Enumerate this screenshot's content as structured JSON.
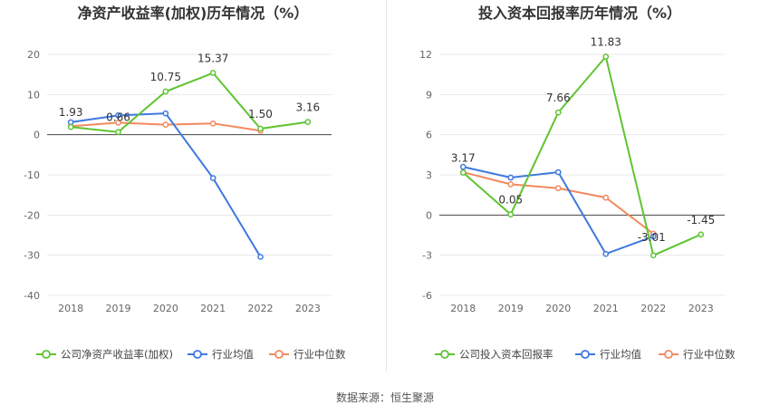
{
  "source_text": "数据来源：恒生聚源",
  "colors": {
    "company": "#5fc431",
    "avg": "#3e78e0",
    "median": "#f28a5e",
    "axis": "#666666",
    "grid": "#e8e8e8"
  },
  "chart_data": [
    {
      "type": "line",
      "title": "净资产收益率(加权)历年情况（%）",
      "categories": [
        "2018",
        "2019",
        "2020",
        "2021",
        "2022",
        "2023"
      ],
      "ylim": [
        -40,
        20
      ],
      "yticks": [
        20,
        10,
        0,
        -10,
        -20,
        -30,
        -40
      ],
      "grid": true,
      "legend_position": "bottom",
      "series": [
        {
          "name": "公司净资产收益率(加权)",
          "color_key": "company",
          "values": [
            1.93,
            0.66,
            10.75,
            15.37,
            1.5,
            3.16
          ]
        },
        {
          "name": "行业均值",
          "color_key": "avg",
          "values": [
            3.1,
            4.8,
            5.3,
            -10.8,
            -30.4,
            null
          ]
        },
        {
          "name": "行业中位数",
          "color_key": "median",
          "values": [
            2.1,
            3.0,
            2.5,
            2.8,
            1.0,
            null
          ]
        }
      ],
      "data_labels": [
        "1.93",
        "0.66",
        "10.75",
        "15.37",
        "1.50",
        "3.16"
      ]
    },
    {
      "type": "line",
      "title": "投入资本回报率历年情况（%）",
      "categories": [
        "2018",
        "2019",
        "2020",
        "2021",
        "2022",
        "2023"
      ],
      "ylim": [
        -6,
        12
      ],
      "yticks": [
        12,
        9,
        6,
        3,
        0,
        -3,
        -6
      ],
      "grid": true,
      "legend_position": "bottom",
      "series": [
        {
          "name": "公司投入资本回报率",
          "color_key": "company",
          "values": [
            3.17,
            0.05,
            7.66,
            11.83,
            -3.01,
            -1.45
          ]
        },
        {
          "name": "行业均值",
          "color_key": "avg",
          "values": [
            3.6,
            2.8,
            3.2,
            -2.9,
            -1.6,
            null
          ]
        },
        {
          "name": "行业中位数",
          "color_key": "median",
          "values": [
            3.2,
            2.3,
            2.0,
            1.3,
            -1.4,
            null
          ]
        }
      ],
      "data_labels": [
        "3.17",
        "0.05",
        "7.66",
        "11.83",
        "-3.01",
        "-1.45"
      ]
    }
  ]
}
